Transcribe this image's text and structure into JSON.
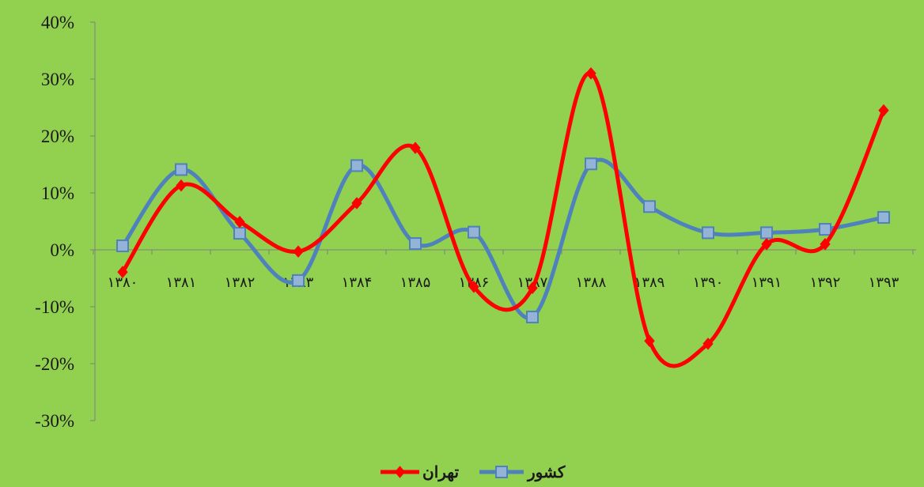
{
  "chart_data": {
    "type": "line",
    "smooth": true,
    "categories": [
      "۱۳۸۰",
      "۱۳۸۱",
      "۱۳۸۲",
      "۱۳۸۳",
      "۱۳۸۴",
      "۱۳۸۵",
      "۱۳۸۶",
      "۱۳۸۷",
      "۱۳۸۸",
      "۱۳۸۹",
      "۱۳۹۰",
      "۱۳۹۱",
      "۱۳۹۲",
      "۱۳۹۳"
    ],
    "series": [
      {
        "name": "تهران",
        "color": "#ff0000",
        "marker": "diamond",
        "values": [
          -3.9,
          11.3,
          4.9,
          -0.3,
          8.2,
          17.9,
          -6.5,
          -6.7,
          31.0,
          -16.0,
          -16.5,
          1.0,
          1.0,
          24.5
        ]
      },
      {
        "name": "کشور",
        "color": "#4f81bd",
        "marker": "square",
        "values": [
          0.7,
          14.1,
          2.9,
          -5.4,
          14.8,
          1.1,
          3.1,
          -11.8,
          15.1,
          7.6,
          3.0,
          3.0,
          3.6,
          5.7
        ]
      }
    ],
    "ylim": [
      -30,
      40
    ],
    "yticks": [
      "40%",
      "30%",
      "20%",
      "10%",
      "0%",
      "-10%",
      "-20%",
      "-30%"
    ],
    "title": "",
    "xlabel": "",
    "ylabel": "",
    "grid": false,
    "legend_position": "bottom",
    "background_color": "#92d050"
  }
}
